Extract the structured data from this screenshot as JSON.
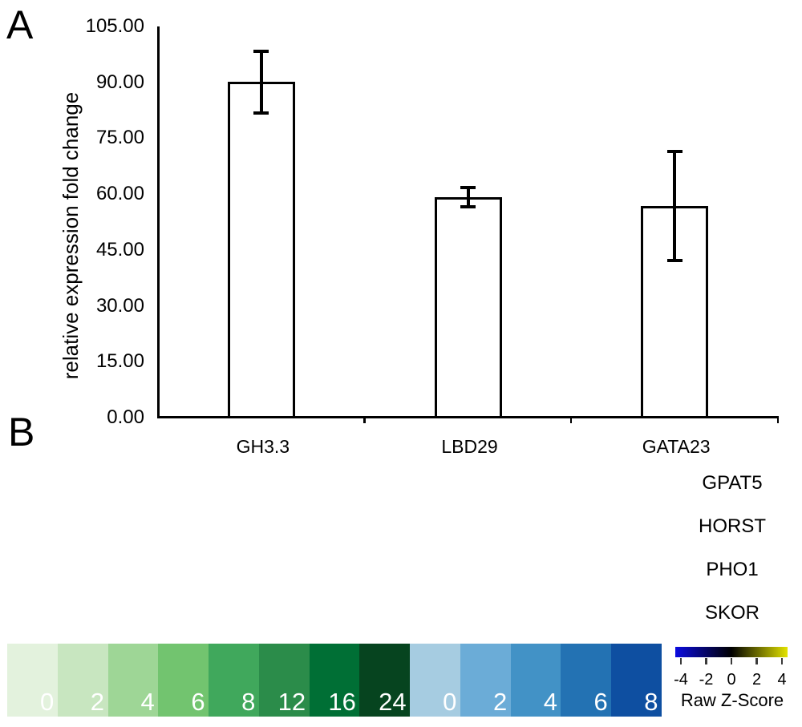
{
  "panels": {
    "a_label": "A",
    "b_label": "B"
  },
  "chart_data": {
    "type": "bar",
    "title": "",
    "xlabel": "",
    "ylabel": "relative expression fold change",
    "categories": [
      "GH3.3",
      "LBD29",
      "GATA23"
    ],
    "values": [
      90.1,
      59.1,
      56.8
    ],
    "errors": [
      8.1,
      2.4,
      14.5
    ],
    "ylim": [
      0,
      105
    ],
    "ytick_step": 15,
    "ytick_labels": [
      "0.00",
      "15.00",
      "30.00",
      "45.00",
      "60.00",
      "75.00",
      "90.00",
      "105.00"
    ],
    "grid": false,
    "legend": false,
    "bar_fill": "#ffffff",
    "bar_border": "#000000"
  },
  "heatmap_legend": {
    "row_labels": [
      "GPAT5",
      "HORST",
      "PHO1",
      "SKOR"
    ],
    "green_scale": {
      "labels": [
        "0",
        "2",
        "4",
        "6",
        "8",
        "12",
        "16",
        "24"
      ],
      "colors": [
        "#e3f2dd",
        "#c8e6c0",
        "#9ed696",
        "#72c46f",
        "#40a85c",
        "#2b8c4a",
        "#006f35",
        "#06441f"
      ]
    },
    "blue_scale": {
      "labels": [
        "0",
        "2",
        "4",
        "6",
        "8"
      ],
      "colors": [
        "#a6cce1",
        "#6bacd7",
        "#4292c6",
        "#2372b3",
        "#0e4fa1"
      ]
    },
    "zscore": {
      "title": "Raw Z-Score",
      "tick_labels": [
        "-4",
        "-2",
        "0",
        "2",
        "4"
      ],
      "gradient": [
        "#0b0be0",
        "#000000",
        "#e3e300"
      ],
      "label_color": "#000000"
    }
  }
}
